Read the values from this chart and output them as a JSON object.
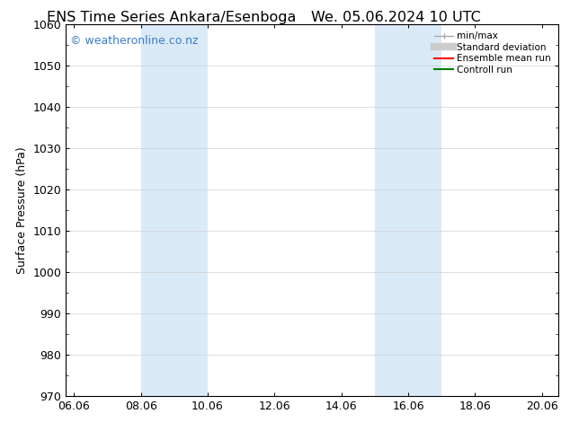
{
  "title_left": "ENS Time Series Ankara/Esenboga",
  "title_right": "We. 05.06.2024 10 UTC",
  "ylabel": "Surface Pressure (hPa)",
  "ylim": [
    970,
    1060
  ],
  "yticks": [
    970,
    980,
    990,
    1000,
    1010,
    1020,
    1030,
    1040,
    1050,
    1060
  ],
  "xlim_start": -0.25,
  "xlim_end": 14.5,
  "xtick_labels": [
    "06.06",
    "08.06",
    "10.06",
    "12.06",
    "14.06",
    "16.06",
    "18.06",
    "20.06"
  ],
  "xtick_positions": [
    0.0,
    2.0,
    4.0,
    6.0,
    8.0,
    10.0,
    12.0,
    14.0
  ],
  "background_color": "#ffffff",
  "plot_bg_color": "#ffffff",
  "shaded_regions": [
    {
      "x_start": 2.0,
      "x_end": 4.0,
      "color": "#daeaf7"
    },
    {
      "x_start": 9.0,
      "x_end": 11.0,
      "color": "#daeaf7"
    }
  ],
  "watermark_text": "© weatheronline.co.nz",
  "watermark_color": "#3a7dc9",
  "legend_entries": [
    {
      "label": "min/max",
      "color": "#aaaaaa",
      "lw": 1.0
    },
    {
      "label": "Standard deviation",
      "color": "#cccccc",
      "lw": 6
    },
    {
      "label": "Ensemble mean run",
      "color": "#ff0000",
      "lw": 1.5
    },
    {
      "label": "Controll run",
      "color": "#008000",
      "lw": 1.5
    }
  ],
  "title_fontsize": 11.5,
  "axis_label_fontsize": 9,
  "tick_fontsize": 9,
  "watermark_fontsize": 9
}
